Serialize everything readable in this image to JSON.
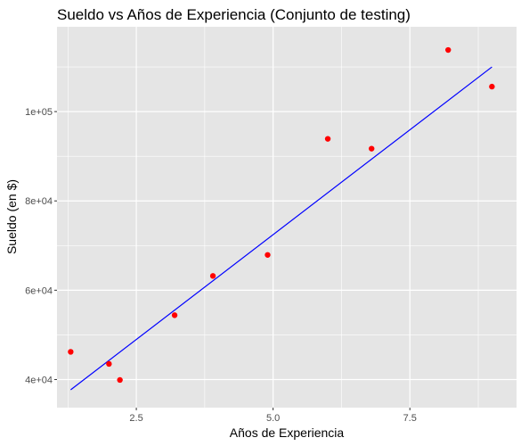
{
  "chart_data": {
    "type": "scatter",
    "title": "Sueldo vs Años de Experiencia (Conjunto de testing)",
    "xlabel": "Años de Experiencia",
    "ylabel": "Sueldo (en $)",
    "xlim": [
      1.05,
      9.45
    ],
    "ylim": [
      33700,
      119000
    ],
    "x_ticks": [
      2.5,
      5.0,
      7.5
    ],
    "x_tick_labels": [
      "2.5",
      "5.0",
      "7.5"
    ],
    "y_ticks": [
      40000,
      60000,
      80000,
      100000
    ],
    "y_tick_labels": [
      "4e+04",
      "6e+04",
      "8e+04",
      "1e+05"
    ],
    "grid": true,
    "background_color": "#e5e5e5",
    "grid_color": "#ffffff",
    "series": [
      {
        "type": "scatter",
        "color": "#ff0000",
        "points": [
          {
            "x": 1.3,
            "y": 46200
          },
          {
            "x": 2.0,
            "y": 43500
          },
          {
            "x": 2.2,
            "y": 39900
          },
          {
            "x": 3.2,
            "y": 54400
          },
          {
            "x": 3.9,
            "y": 63200
          },
          {
            "x": 4.9,
            "y": 67900
          },
          {
            "x": 6.0,
            "y": 93900
          },
          {
            "x": 6.8,
            "y": 91700
          },
          {
            "x": 8.2,
            "y": 113800
          },
          {
            "x": 9.0,
            "y": 105600
          }
        ]
      },
      {
        "type": "line",
        "color": "#0000ff",
        "points": [
          {
            "x": 1.3,
            "y": 37700
          },
          {
            "x": 9.0,
            "y": 110000
          }
        ]
      }
    ]
  }
}
